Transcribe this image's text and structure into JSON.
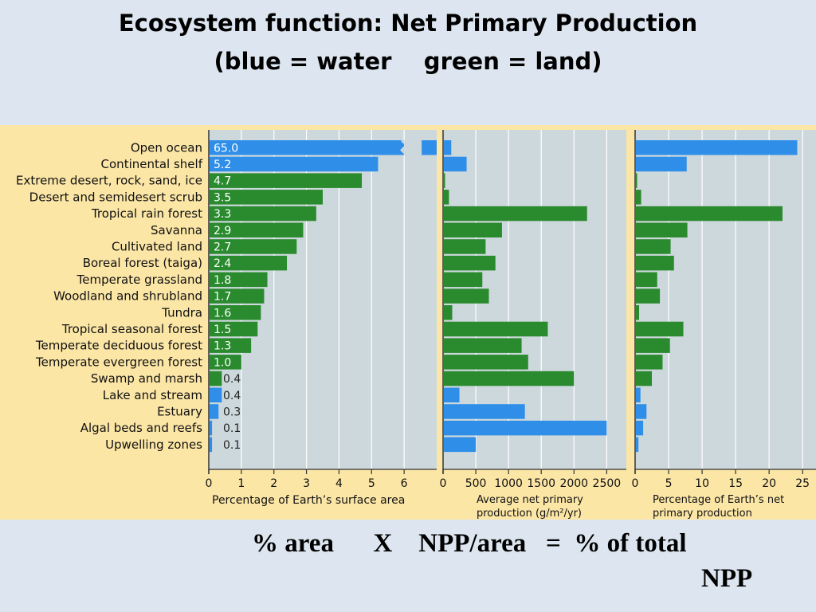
{
  "slide": {
    "title_line1": "Ecosystem function: Net Primary Production",
    "title_line2": "(blue = water    green = land)",
    "caption_line1": "% area      X    NPP/area   =  % of total",
    "caption_line2": "NPP"
  },
  "colors": {
    "water": "#2f8fe8",
    "land": "#2a8a2e",
    "plot_bg": "#cdd8dc",
    "figure_bg": "#fbe6a6"
  },
  "chart_data": {
    "type": "bar",
    "orientation": "horizontal",
    "categories": [
      "Open ocean",
      "Continental shelf",
      "Extreme desert, rock, sand, ice",
      "Desert and semidesert scrub",
      "Tropical rain forest",
      "Savanna",
      "Cultivated land",
      "Boreal forest (taiga)",
      "Temperate grassland",
      "Woodland and shrubland",
      "Tundra",
      "Tropical seasonal forest",
      "Temperate deciduous forest",
      "Temperate evergreen forest",
      "Swamp and marsh",
      "Lake and stream",
      "Estuary",
      "Algal beds and reefs",
      "Upwelling zones"
    ],
    "type_by_category": [
      "water",
      "water",
      "land",
      "land",
      "land",
      "land",
      "land",
      "land",
      "land",
      "land",
      "land",
      "land",
      "land",
      "land",
      "land",
      "water",
      "water",
      "water",
      "water"
    ],
    "panels": [
      {
        "name": "area",
        "xlabel": "Percentage of Earth’s surface area",
        "xticks": [
          "0",
          "1",
          "2",
          "3",
          "4",
          "5",
          "6"
        ],
        "xlim": [
          0,
          7
        ],
        "axis_break_after": 6,
        "values": [
          65.0,
          5.2,
          4.7,
          3.5,
          3.3,
          2.9,
          2.7,
          2.4,
          1.8,
          1.7,
          1.6,
          1.5,
          1.3,
          1.0,
          0.4,
          0.4,
          0.3,
          0.1,
          0.1
        ],
        "value_labels": [
          "65.0",
          "5.2",
          "4.7",
          "3.5",
          "3.3",
          "2.9",
          "2.7",
          "2.4",
          "1.8",
          "1.7",
          "1.6",
          "1.5",
          "1.3",
          "1.0",
          "0.4",
          "0.4",
          "0.3",
          "0.1",
          "0.1"
        ]
      },
      {
        "name": "npp_per_area",
        "xlabel_lines": [
          "Average net primary",
          "production (g/m²/yr)"
        ],
        "xticks": [
          "0",
          "500",
          "1000",
          "1500",
          "2000",
          "2500"
        ],
        "xlim": [
          0,
          2800
        ],
        "values": [
          125,
          360,
          3,
          90,
          2200,
          900,
          650,
          800,
          600,
          700,
          140,
          1600,
          1200,
          1300,
          2000,
          250,
          1250,
          2500,
          500
        ]
      },
      {
        "name": "pct_total_npp",
        "xlabel_lines": [
          "Percentage of Earth’s net",
          "primary production"
        ],
        "xticks": [
          "0",
          "5",
          "10",
          "15",
          "20",
          "25"
        ],
        "xlim": [
          0,
          27
        ],
        "values": [
          24.2,
          7.7,
          0.3,
          0.9,
          22.0,
          7.8,
          5.3,
          5.8,
          3.3,
          3.7,
          0.6,
          7.2,
          5.2,
          4.1,
          2.5,
          0.8,
          1.7,
          1.2,
          0.5
        ]
      }
    ]
  }
}
